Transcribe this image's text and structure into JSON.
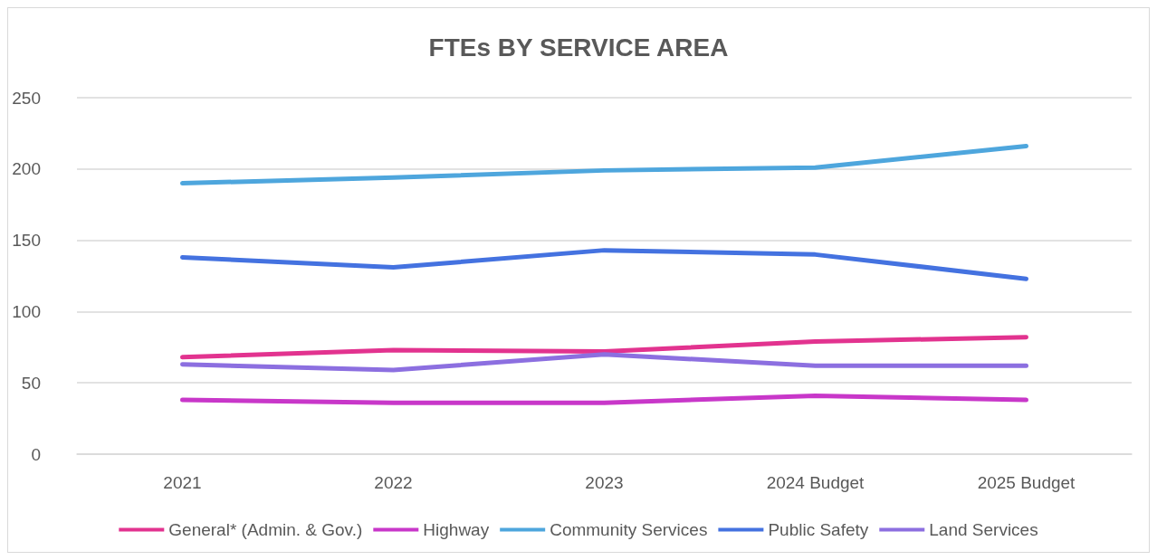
{
  "chart_data": {
    "type": "line",
    "title": "FTEs BY SERVICE AREA",
    "categories": [
      "2021",
      "2022",
      "2023",
      "2024 Budget",
      "2025 Budget"
    ],
    "series": [
      {
        "name": "General* (Admin. & Gov.)",
        "color": "#e2338f",
        "values": [
          68,
          73,
          72,
          79,
          82
        ]
      },
      {
        "name": "Highway",
        "color": "#c837c9",
        "values": [
          38,
          36,
          36,
          41,
          38
        ]
      },
      {
        "name": "Community Services",
        "color": "#4ea6dd",
        "values": [
          190,
          194,
          199,
          201,
          216
        ]
      },
      {
        "name": "Public Safety",
        "color": "#4472e0",
        "values": [
          138,
          131,
          143,
          140,
          123
        ]
      },
      {
        "name": "Land Services",
        "color": "#8c6fe0",
        "values": [
          63,
          59,
          70,
          62,
          62
        ]
      }
    ],
    "ylim": [
      0,
      250
    ],
    "yticks": [
      0,
      50,
      100,
      150,
      200,
      250
    ],
    "grid": "y",
    "legend": "bottom",
    "marker": "none",
    "line_style": "solid"
  }
}
